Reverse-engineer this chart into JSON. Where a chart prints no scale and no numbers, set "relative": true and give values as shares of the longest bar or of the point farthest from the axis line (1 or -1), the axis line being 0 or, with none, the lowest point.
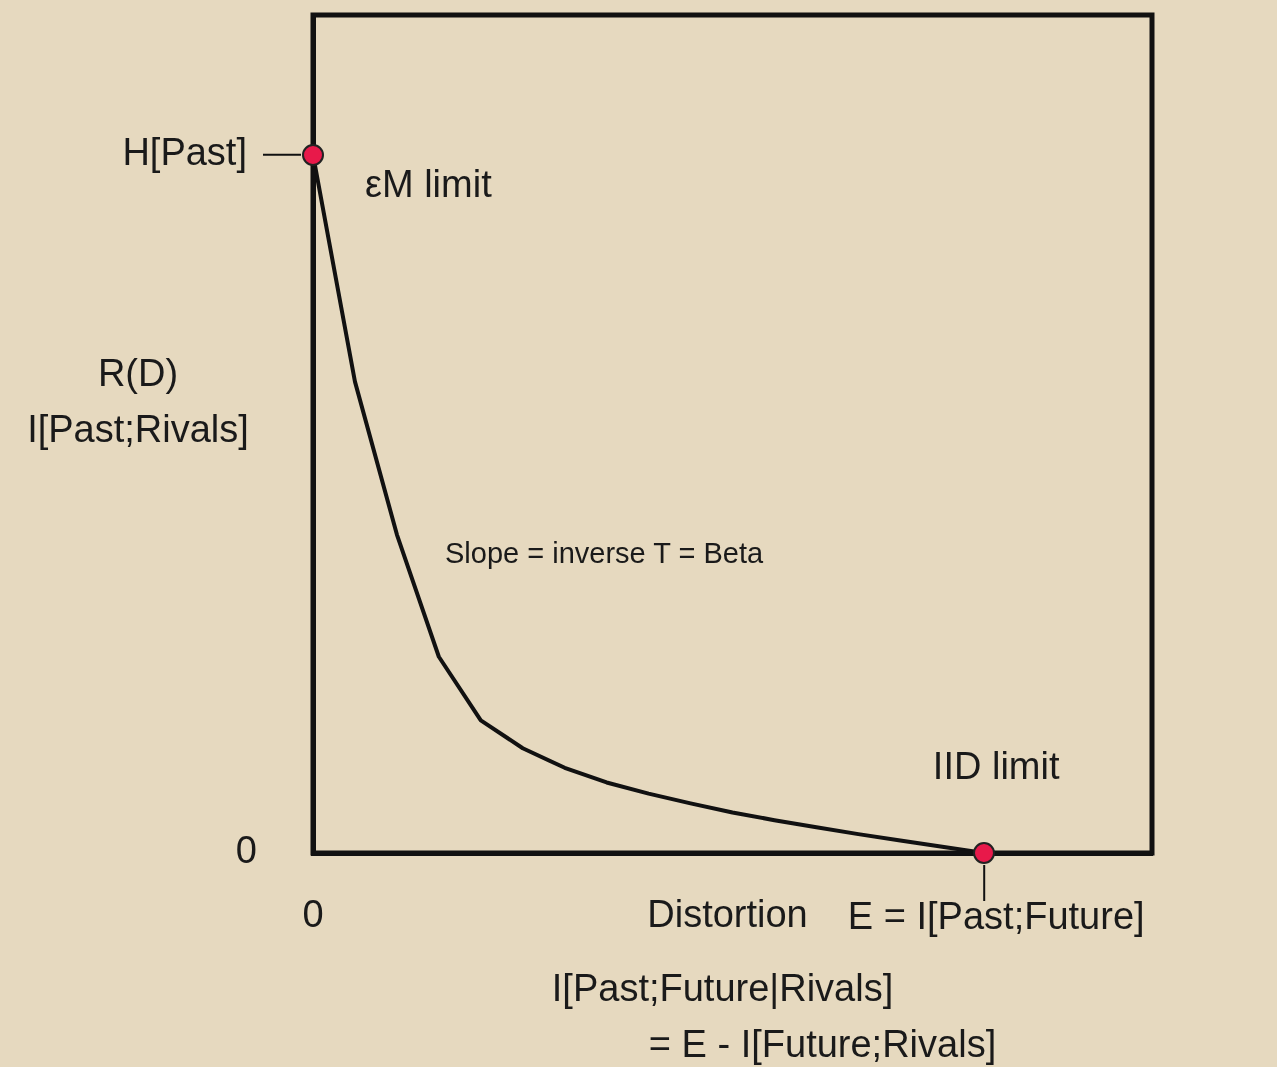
{
  "chart_data": {
    "type": "line",
    "relative": true,
    "xlabel": "Distortion",
    "ylabel": "R(D)\nI[Past;Rivals]",
    "grid": false,
    "legend": false,
    "categories": [
      null,
      null,
      null,
      null,
      null,
      null,
      null,
      null,
      null,
      null,
      null,
      null,
      null,
      null,
      null,
      null,
      null,
      null,
      null,
      null,
      null
    ],
    "series": [
      {
        "color": "#111111",
        "values": [
          1,
          0.675,
          0.456,
          0.281,
          0.19,
          0.15,
          0.122,
          0.101,
          0.085,
          0.071,
          0.058,
          0.047,
          0.037,
          0.027,
          0.018,
          0.009,
          0,
          null,
          null,
          null,
          null
        ]
      }
    ],
    "annotations": [
      "H[Past]",
      "εM limit",
      "IID limit",
      "E = I[Past;Future]",
      "0",
      "0",
      "Slope = inverse T = Beta",
      "I[Past;Future|Rivals]\n= E - I[Future;Rivals]"
    ]
  }
}
